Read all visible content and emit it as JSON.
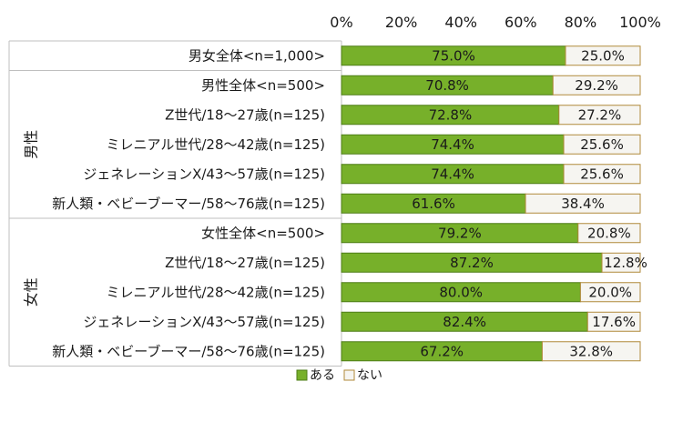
{
  "chart_data": {
    "type": "bar",
    "orientation": "horizontal",
    "stacked": "percent",
    "title": "",
    "xlim": [
      0,
      100
    ],
    "x_ticks": [
      "0%",
      "20%",
      "40%",
      "60%",
      "80%",
      "100%"
    ],
    "groups": [
      {
        "label": "",
        "categories": [
          "男女全体<n=1,000>"
        ]
      },
      {
        "label": "男性",
        "categories": [
          "男性全体<n=500>",
          "Z世代/18～27歳(n=125)",
          "ミレニアル世代/28～42歳(n=125)",
          "ジェネレーションX/43～57歳(n=125)",
          "新人類・ベビーブーマー/58～76歳(n=125)"
        ]
      },
      {
        "label": "女性",
        "categories": [
          "女性全体<n=500>",
          "Z世代/18～27歳(n=125)",
          "ミレニアル世代/28～42歳(n=125)",
          "ジェネレーションX/43～57歳(n=125)",
          "新人類・ベビーブーマー/58～76歳(n=125)"
        ]
      }
    ],
    "categories": [
      "男女全体<n=1,000>",
      "男性全体<n=500>",
      "Z世代/18～27歳(n=125)",
      "ミレニアル世代/28～42歳(n=125)",
      "ジェネレーションX/43～57歳(n=125)",
      "新人類・ベビーブーマー/58～76歳(n=125)",
      "女性全体<n=500>",
      "Z世代/18～27歳(n=125)",
      "ミレニアル世代/28～42歳(n=125)",
      "ジェネレーションX/43～57歳(n=125)",
      "新人類・ベビーブーマー/58～76歳(n=125)"
    ],
    "series": [
      {
        "name": "ある",
        "color": "#77b02a",
        "values": [
          75.0,
          70.8,
          72.8,
          74.4,
          74.4,
          61.6,
          79.2,
          87.2,
          80.0,
          82.4,
          67.2
        ],
        "labels": [
          "75.0%",
          "70.8%",
          "72.8%",
          "74.4%",
          "74.4%",
          "61.6%",
          "79.2%",
          "87.2%",
          "80.0%",
          "82.4%",
          "67.2%"
        ]
      },
      {
        "name": "ない",
        "color": "#f6f5f1",
        "border": "#b08a3a",
        "values": [
          25.0,
          29.2,
          27.2,
          25.6,
          25.6,
          38.4,
          20.8,
          12.8,
          20.0,
          17.6,
          32.8
        ],
        "labels": [
          "25.0%",
          "29.2%",
          "27.2%",
          "25.6%",
          "25.6%",
          "38.4%",
          "20.8%",
          "12.8%",
          "20.0%",
          "17.6%",
          "32.8%"
        ]
      }
    ],
    "legend": {
      "placement": "bottom",
      "items": [
        "ある",
        "ない"
      ]
    }
  }
}
